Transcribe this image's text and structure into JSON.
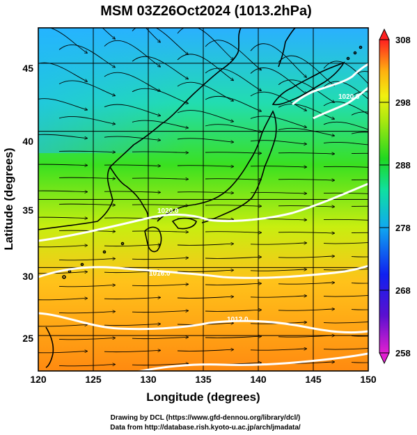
{
  "title": "MSM 03Z26Oct2024 (1013.2hPa)",
  "x_axis": {
    "label": "Longitude (degrees)",
    "range": [
      120,
      150
    ],
    "ticks": [
      "120",
      "125",
      "130",
      "135",
      "140",
      "145",
      "150"
    ]
  },
  "y_axis": {
    "label": "Latitude  (degrees)",
    "range": [
      22.4,
      47.6
    ],
    "ticks": [
      "25",
      "30",
      "35",
      "40",
      "45"
    ]
  },
  "colorbar": {
    "min": 258,
    "max": 308,
    "ticks": [
      "308",
      "298",
      "288",
      "278",
      "268",
      "258"
    ]
  },
  "contour_labels": [
    "1020.0",
    "1016.0",
    "1012.0",
    "1020.0"
  ],
  "credits": {
    "line1": "Drawing by DCL (https://www.gfd-dennou.org/library/dcl/)",
    "line2": "Data from http://database.rish.kyoto-u.ac.jp/arch/jmadata/"
  },
  "colors": {
    "frame": "#000000",
    "isobar": "#ffffff",
    "coast": "#000000"
  }
}
